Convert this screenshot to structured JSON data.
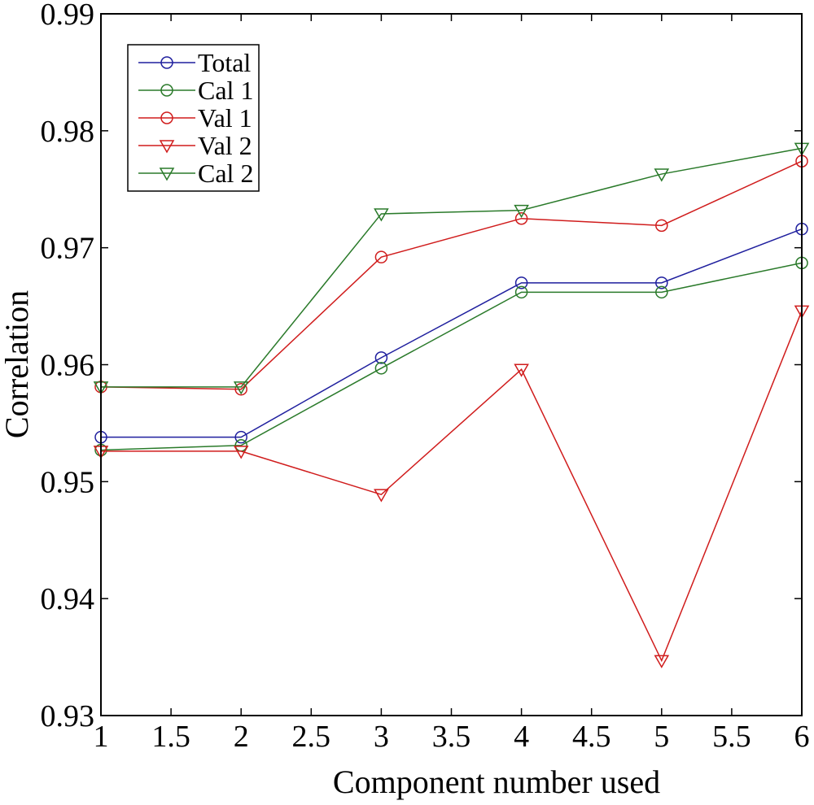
{
  "chart_data": {
    "type": "line",
    "title": "",
    "xlabel": "Component number used",
    "ylabel": "Correlation",
    "xlim": [
      1,
      6
    ],
    "ylim": [
      0.93,
      0.99
    ],
    "xticks": [
      "1",
      "1.5",
      "2",
      "2.5",
      "3",
      "3.5",
      "4",
      "4.5",
      "5",
      "5.5",
      "6"
    ],
    "yticks": [
      "0.93",
      "0.94",
      "0.95",
      "0.96",
      "0.97",
      "0.98",
      "0.99"
    ],
    "grid": false,
    "legend_position": "top-left",
    "x": [
      1,
      2,
      3,
      4,
      5,
      6
    ],
    "series": [
      {
        "name": "Total",
        "color": "#1f1f9e",
        "marker": "circle",
        "values": [
          0.9538,
          0.9538,
          0.9606,
          0.967,
          0.967,
          0.9716
        ]
      },
      {
        "name": "Cal 1",
        "color": "#2a7a2a",
        "marker": "circle",
        "values": [
          0.9527,
          0.9531,
          0.9597,
          0.9662,
          0.9662,
          0.9687
        ]
      },
      {
        "name": "Val 1",
        "color": "#d01c1c",
        "marker": "circle",
        "values": [
          0.9581,
          0.9579,
          0.9692,
          0.9725,
          0.9719,
          0.9774
        ]
      },
      {
        "name": "Val 2",
        "color": "#d01c1c",
        "marker": "triangle-down",
        "values": [
          0.9526,
          0.9526,
          0.9489,
          0.9596,
          0.9347,
          0.9646
        ]
      },
      {
        "name": "Cal 2",
        "color": "#2a7a2a",
        "marker": "triangle-down",
        "values": [
          0.9581,
          0.9581,
          0.9729,
          0.9732,
          0.9763,
          0.9785
        ]
      }
    ]
  }
}
